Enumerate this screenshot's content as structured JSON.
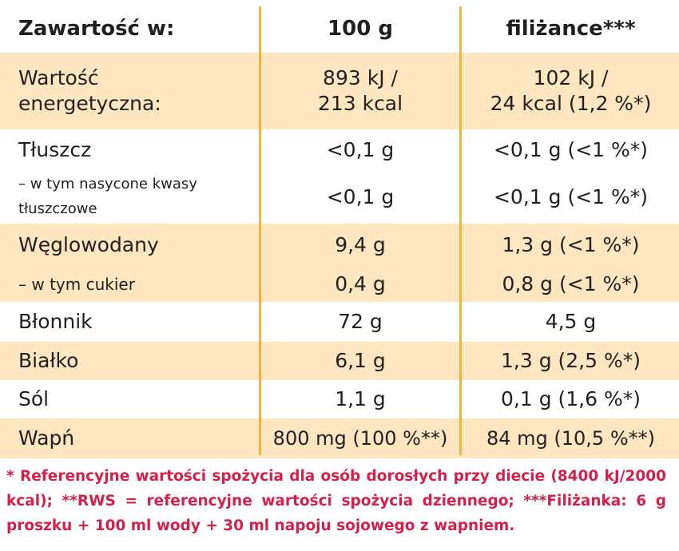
{
  "header": {
    "label": "Zawartość w:",
    "col1": "100 g",
    "col2": "filiżance***"
  },
  "rows": [
    {
      "label": [
        "Wartość",
        "energetyczna:"
      ],
      "v1": [
        "893 kJ /",
        "213 kcal"
      ],
      "v2": [
        "102 kJ /",
        "24 kcal (1,2 %*)"
      ]
    },
    {
      "label": [
        "Tłuszcz"
      ],
      "v1": [
        "<0,1 g"
      ],
      "v2": [
        "<0,1 g (<1 %*)"
      ]
    },
    {
      "label": [
        "– w tym nasycone kwasy",
        "tłuszczowe"
      ],
      "v1": [
        "<0,1 g"
      ],
      "v2": [
        "<0,1 g (<1 %*)"
      ]
    },
    {
      "label": [
        "Węglowodany"
      ],
      "v1": [
        "9,4 g"
      ],
      "v2": [
        "1,3 g (<1 %*)"
      ]
    },
    {
      "label": [
        "– w tym cukier"
      ],
      "v1": [
        "0,4 g"
      ],
      "v2": [
        "0,8 g (<1 %*)"
      ]
    },
    {
      "label": [
        "Błonnik"
      ],
      "v1": [
        "72 g"
      ],
      "v2": [
        "4,5 g"
      ]
    },
    {
      "label": [
        "Białko"
      ],
      "v1": [
        "6,1 g"
      ],
      "v2": [
        "1,3 g (2,5 %*)"
      ]
    },
    {
      "label": [
        "Sól"
      ],
      "v1": [
        "1,1 g"
      ],
      "v2": [
        "0,1 g (1,6 %*)"
      ]
    },
    {
      "label": [
        "Wapń"
      ],
      "v1": [
        "800 mg (100 %**)"
      ],
      "v2": [
        "84 mg (10,5 %**)"
      ]
    }
  ],
  "footnote": "* Referencyjne wartości spożycia dla osób dorosłych przy diecie (8400 kJ/2000 kcal); **RWS = referencyjne wartości spożycia dziennego; ***Filiżanka: 6 g proszku + 100 ml wody + 30 ml napoju sojowego z wapniem.",
  "colors": {
    "row_shade": "#fde6c0",
    "divider": "#f7b43c",
    "text": "#231f20",
    "footnote": "#d6204c"
  }
}
